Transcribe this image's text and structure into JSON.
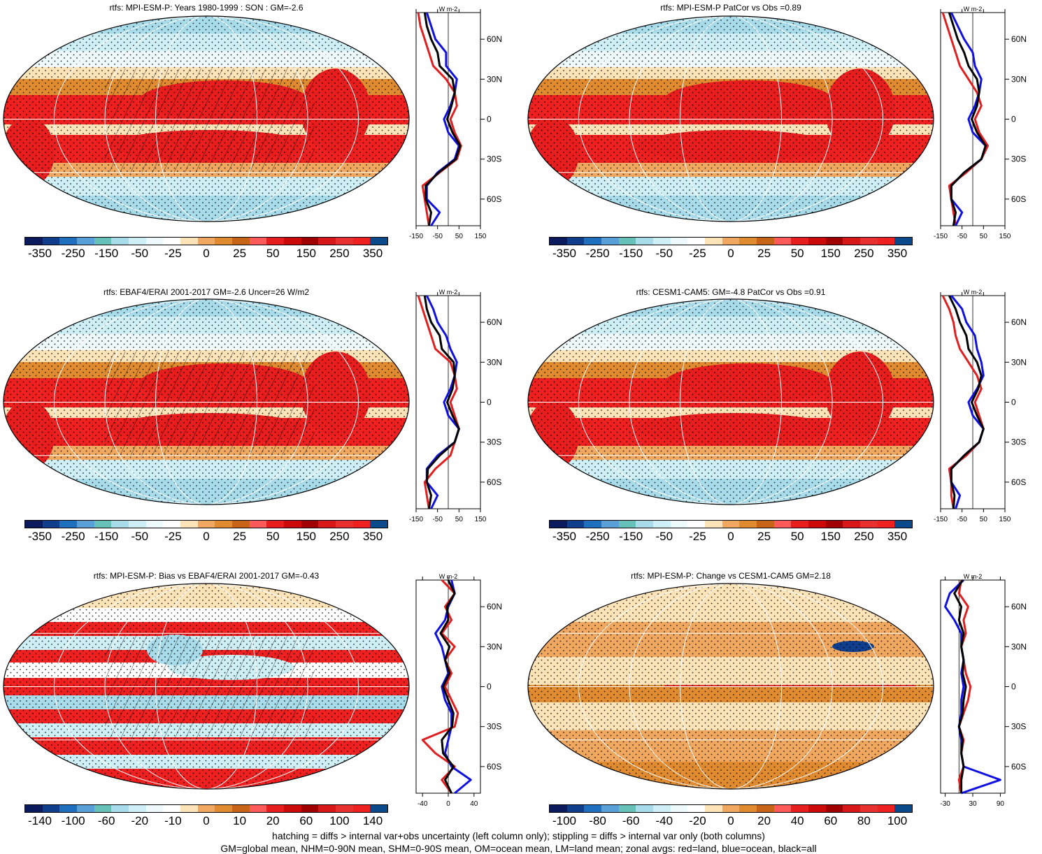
{
  "footer": {
    "line1": "hatching = diffs > internal var+obs uncertainty (left column only); stippling = diffs > internal var only (both columns)",
    "line2": "GM=global mean, NHM=0-90N mean, SHM=0-90S mean, OM=ocean mean, LM=land mean; zonal avgs: red=land, blue=ocean, black=all"
  },
  "colors": {
    "palette": [
      "#0a1a5c",
      "#0f3f8c",
      "#1f6fbf",
      "#5aa0d8",
      "#66c2b8",
      "#a8dcea",
      "#cdeff5",
      "#eef9fb",
      "#ffffff",
      "#fde3b8",
      "#f0a860",
      "#e08b30",
      "#c86418",
      "#ff5a5a",
      "#e81e1e",
      "#cc0a0a",
      "#a00000",
      "#d81818",
      "#e83030",
      "#ee2020",
      "#0a4a8a"
    ],
    "land": "#e02020",
    "ocean": "#1010e0",
    "all": "#000000"
  },
  "units": "W m-2",
  "lat_ticks": [
    "60N",
    "30N",
    "0",
    "30S",
    "60S"
  ],
  "chart_data": [
    {
      "type": "heatmap",
      "title": "rtfs: MPI-ESM-P: Years 1980-1999 : SON : GM=-2.6",
      "colorbar_labels": [
        "-350",
        "-250",
        "-150",
        "-50",
        "-25",
        "0",
        "25",
        "50",
        "150",
        "250",
        "350"
      ],
      "zonal_x_ticks": [
        "-150",
        "-50",
        "50",
        "150"
      ],
      "zonal_xlim": [
        -150,
        150
      ],
      "lat": [
        80,
        70,
        60,
        50,
        40,
        30,
        20,
        10,
        0,
        -10,
        -20,
        -30,
        -40,
        -50,
        -60,
        -70,
        -80
      ],
      "zonal": {
        "land": [
          -140,
          -130,
          -110,
          -90,
          -70,
          -10,
          30,
          40,
          10,
          30,
          60,
          40,
          -40,
          -120,
          -110,
          -100,
          -90
        ],
        "ocean": [
          -100,
          -80,
          -60,
          -10,
          -10,
          40,
          30,
          10,
          -20,
          0,
          50,
          30,
          -50,
          -100,
          -100,
          -40,
          -80
        ],
        "all": [
          -110,
          -100,
          -80,
          -50,
          -40,
          20,
          30,
          15,
          -5,
          20,
          55,
          35,
          -45,
          -105,
          -105,
          -80,
          -90
        ]
      }
    },
    {
      "type": "heatmap",
      "title": "rtfs: MPI-ESM-P PatCor vs Obs =0.89",
      "colorbar_labels": [
        "-350",
        "-250",
        "-150",
        "-50",
        "-25",
        "0",
        "25",
        "50",
        "150",
        "250",
        "350"
      ],
      "zonal_x_ticks": [
        "-150",
        "-50",
        "50",
        "150"
      ],
      "zonal_xlim": [
        -150,
        150
      ],
      "lat": [
        80,
        70,
        60,
        50,
        40,
        30,
        20,
        10,
        0,
        -10,
        -20,
        -30,
        -40,
        -50,
        -60,
        -70,
        -80
      ],
      "zonal": {
        "land": [
          -140,
          -120,
          -100,
          -80,
          -60,
          -20,
          20,
          40,
          10,
          30,
          70,
          40,
          -30,
          -110,
          -100,
          -90,
          -80
        ],
        "ocean": [
          -100,
          -70,
          -40,
          0,
          10,
          40,
          30,
          10,
          -20,
          0,
          60,
          40,
          -40,
          -100,
          -100,
          -50,
          -80
        ],
        "all": [
          -110,
          -90,
          -70,
          -40,
          -20,
          20,
          30,
          20,
          -5,
          20,
          60,
          40,
          -40,
          -100,
          -100,
          -80,
          -90
        ]
      }
    },
    {
      "type": "heatmap",
      "title": "rtfs: EBAF4/ERAI 2001-2017 GM=-2.6 Uncer=26 W/m2",
      "colorbar_labels": [
        "-350",
        "-250",
        "-150",
        "-50",
        "-25",
        "0",
        "25",
        "50",
        "150",
        "250",
        "350"
      ],
      "zonal_x_ticks": [
        "-150",
        "-50",
        "50",
        "150"
      ],
      "zonal_xlim": [
        -150,
        150
      ],
      "lat": [
        80,
        70,
        60,
        50,
        40,
        30,
        20,
        10,
        0,
        -10,
        -20,
        -30,
        -40,
        -50,
        -60,
        -70,
        -80
      ],
      "zonal": {
        "land": [
          -140,
          -120,
          -100,
          -80,
          -60,
          10,
          30,
          40,
          10,
          30,
          50,
          30,
          10,
          -60,
          -110,
          -100,
          -90
        ],
        "ocean": [
          -100,
          -70,
          -50,
          -10,
          10,
          40,
          30,
          10,
          -20,
          0,
          50,
          30,
          -50,
          -100,
          -100,
          -50,
          -80
        ],
        "all": [
          -110,
          -100,
          -80,
          -40,
          -30,
          25,
          30,
          20,
          -5,
          20,
          50,
          30,
          -40,
          -95,
          -100,
          -80,
          -90
        ]
      }
    },
    {
      "type": "heatmap",
      "title": "rtfs: CESM1-CAM5: GM=-4.8 PatCor vs Obs =0.91",
      "colorbar_labels": [
        "-350",
        "-250",
        "-150",
        "-50",
        "-25",
        "0",
        "25",
        "50",
        "150",
        "250",
        "350"
      ],
      "zonal_x_ticks": [
        "-150",
        "-50",
        "50",
        "150"
      ],
      "zonal_xlim": [
        -150,
        150
      ],
      "lat": [
        80,
        70,
        60,
        50,
        40,
        30,
        20,
        10,
        0,
        -10,
        -20,
        -30,
        -40,
        -50,
        -60,
        -70,
        -80
      ],
      "zonal": {
        "land": [
          -140,
          -110,
          -90,
          -80,
          -60,
          -20,
          20,
          40,
          10,
          30,
          50,
          30,
          -30,
          -110,
          -100,
          -100,
          -90
        ],
        "ocean": [
          -100,
          -50,
          -30,
          10,
          20,
          40,
          50,
          20,
          -20,
          0,
          50,
          30,
          -40,
          -100,
          -100,
          -60,
          -80
        ],
        "all": [
          -110,
          -80,
          -60,
          -30,
          -20,
          20,
          40,
          25,
          -5,
          20,
          50,
          30,
          -40,
          -100,
          -100,
          -85,
          -90
        ]
      }
    },
    {
      "type": "heatmap",
      "title": "rtfs: MPI-ESM-P: Bias vs EBAF4/ERAI 2001-2017  GM=-0.43",
      "colorbar_labels": [
        "-140",
        "-100",
        "-60",
        "-20",
        "-10",
        "0",
        "10",
        "20",
        "60",
        "100",
        "140"
      ],
      "zonal_x_ticks": [
        "-40",
        "0",
        "40"
      ],
      "zonal_xlim": [
        -50,
        50
      ],
      "lat": [
        80,
        70,
        60,
        50,
        40,
        30,
        20,
        10,
        0,
        -10,
        -20,
        -30,
        -40,
        -50,
        -60,
        -70,
        -80
      ],
      "zonal": {
        "land": [
          -10,
          10,
          -5,
          5,
          -10,
          10,
          -5,
          5,
          -5,
          5,
          15,
          10,
          -40,
          -20,
          10,
          -10,
          5
        ],
        "ocean": [
          5,
          10,
          0,
          -5,
          -20,
          -10,
          -5,
          0,
          -10,
          -5,
          5,
          5,
          0,
          -5,
          5,
          35,
          10
        ],
        "all": [
          0,
          10,
          -2,
          0,
          -12,
          2,
          -5,
          2,
          -8,
          0,
          8,
          6,
          -10,
          -8,
          8,
          -5,
          5
        ]
      }
    },
    {
      "type": "heatmap",
      "title": "rtfs: MPI-ESM-P: Change vs CESM1-CAM5 GM=2.18",
      "colorbar_labels": [
        "-100",
        "-80",
        "-60",
        "-40",
        "-20",
        "0",
        "20",
        "40",
        "60",
        "80",
        "100"
      ],
      "zonal_x_ticks": [
        "-30",
        "30",
        "90"
      ],
      "zonal_xlim": [
        -40,
        100
      ],
      "lat": [
        80,
        70,
        60,
        50,
        40,
        30,
        20,
        10,
        0,
        -10,
        -20,
        -30,
        -40,
        -50,
        -60,
        -70,
        -80
      ],
      "zonal": {
        "land": [
          5,
          0,
          20,
          10,
          15,
          5,
          10,
          15,
          25,
          20,
          10,
          0,
          10,
          5,
          10,
          0,
          5
        ],
        "ocean": [
          10,
          -20,
          -30,
          -10,
          5,
          5,
          10,
          5,
          10,
          5,
          5,
          0,
          5,
          5,
          10,
          90,
          5
        ],
        "all": [
          8,
          -10,
          5,
          0,
          10,
          5,
          10,
          8,
          15,
          10,
          8,
          0,
          8,
          5,
          10,
          5,
          5
        ]
      }
    }
  ]
}
